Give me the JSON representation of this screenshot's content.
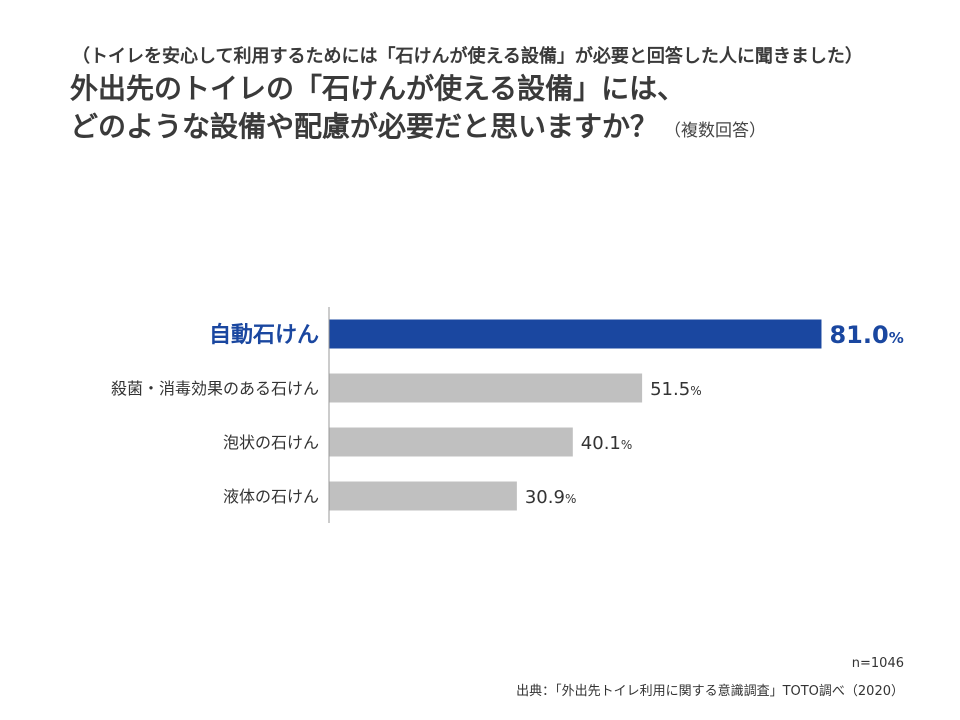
{
  "header": {
    "subtitle": "（トイレを安心して利用するためには「石けんが使える設備」が必要と回答した人に聞きました）",
    "title_line1": "外出先のトイレの「石けんが使える設備」には、",
    "title_line2": "どのような設備や配慮が必要だと思いますか？",
    "title_note": "（複数回答）"
  },
  "colors": {
    "highlight": "#1a47a0",
    "bar": "#c0c0c0",
    "axis": "#999999",
    "text": "#333333"
  },
  "chart_data": {
    "type": "bar",
    "orientation": "horizontal",
    "categories": [
      "自動石けん",
      "殺菌・消毒効果のある石けん",
      "泡状の石けん",
      "液体の石けん"
    ],
    "values": [
      81.0,
      51.5,
      40.1,
      30.9
    ],
    "value_labels": [
      "81.0",
      "51.5",
      "40.1",
      "30.9"
    ],
    "unit": "%",
    "highlight_index": 0,
    "xlim": [
      0,
      100
    ],
    "grid": false
  },
  "footer": {
    "sample_size": "n=1046",
    "source": "出典：「外出先トイレ利用に関する意識調査」TOTO調べ（2020）"
  }
}
